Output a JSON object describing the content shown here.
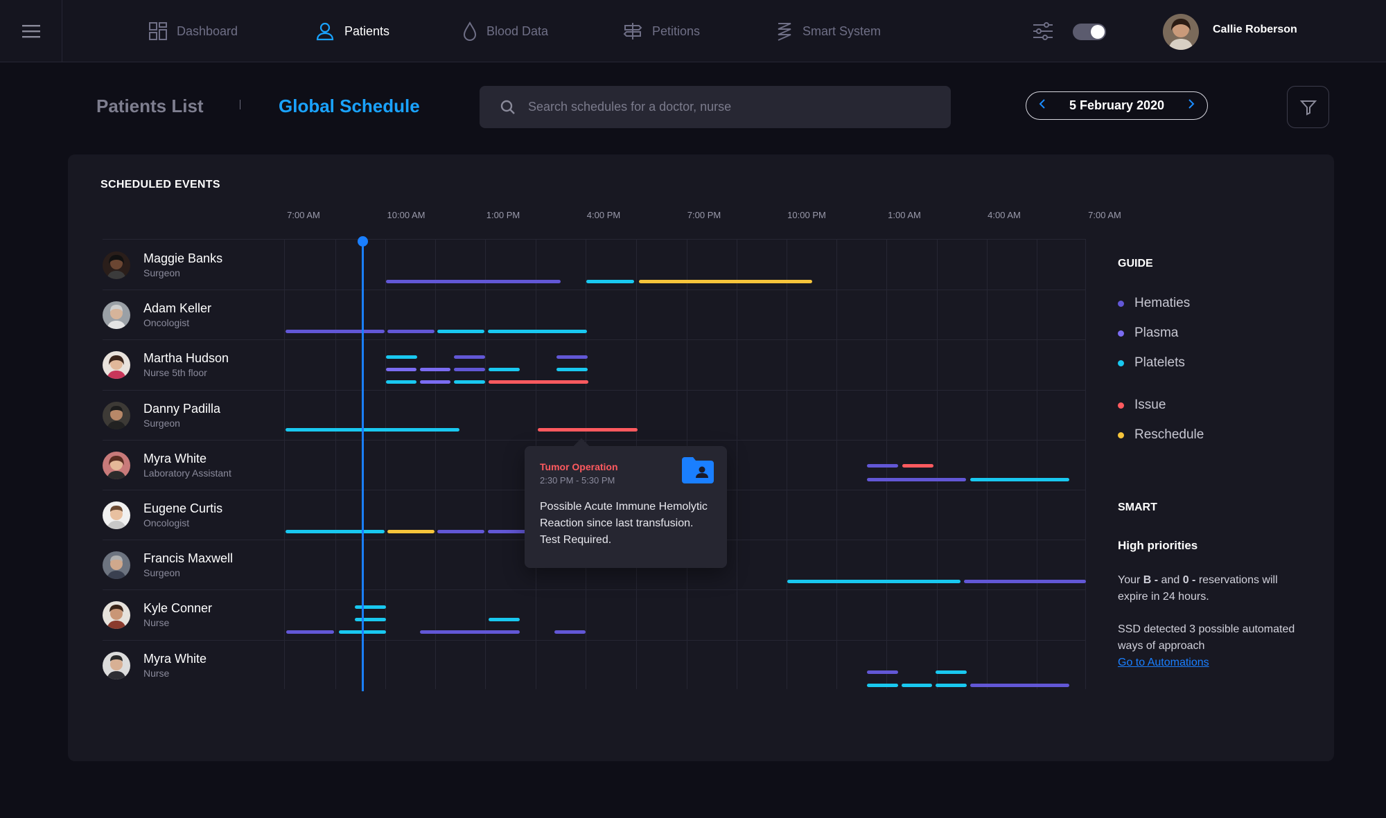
{
  "nav": {
    "items": [
      {
        "label": "Dashboard",
        "icon": "dashboard-icon"
      },
      {
        "label": "Patients",
        "icon": "user-icon"
      },
      {
        "label": "Blood Data",
        "icon": "drop-icon"
      },
      {
        "label": "Petitions",
        "icon": "signpost-icon"
      },
      {
        "label": "Smart System",
        "icon": "spiral-icon"
      }
    ],
    "active": "Patients",
    "toggle_on": true,
    "user_name": "Callie Roberson"
  },
  "header": {
    "tab_inactive": "Patients List",
    "tab_active": "Global Schedule",
    "search_placeholder": "Search schedules for a doctor, nurse",
    "date": "5 February 2020"
  },
  "schedule": {
    "title": "SCHEDULED EVENTS",
    "times": [
      "7:00 AM",
      "10:00 AM",
      "1:00 PM",
      "4:00 PM",
      "7:00 PM",
      "10:00 PM",
      "1:00 AM",
      "4:00 AM",
      "7:00 AM"
    ],
    "people": [
      {
        "name": "Maggie Banks",
        "role": "Surgeon"
      },
      {
        "name": "Adam Keller",
        "role": "Oncologist"
      },
      {
        "name": "Martha Hudson",
        "role": "Nurse 5th floor"
      },
      {
        "name": "Danny Padilla",
        "role": "Surgeon"
      },
      {
        "name": "Myra White",
        "role": "Laboratory Assistant"
      },
      {
        "name": "Eugene Curtis",
        "role": "Oncologist"
      },
      {
        "name": "Francis Maxwell",
        "role": "Surgeon"
      },
      {
        "name": "Kyle Conner",
        "role": "Nurse"
      },
      {
        "name": "Myra White",
        "role": "Nurse"
      }
    ]
  },
  "tooltip": {
    "title": "Tumor Operation",
    "time": "2:30 PM - 5:30 PM",
    "body": "Possible Acute Immune Hemolytic Reaction since last transfusion. Test Required."
  },
  "guide": {
    "title": "GUIDE",
    "items": [
      {
        "label": "Hematies",
        "color": "#6257d6"
      },
      {
        "label": "Plasma",
        "color": "#7b6cf2"
      },
      {
        "label": "Platelets",
        "color": "#19c8f0"
      },
      {
        "label": "Issue",
        "color": "#ff5a5f"
      },
      {
        "label": "Reschedule",
        "color": "#f6c43b"
      }
    ]
  },
  "smart": {
    "title": "SMART",
    "subtitle": "High priorities",
    "line1_pre": "Your ",
    "line1_b": "B -",
    "line1_mid": " and ",
    "line1_0": "0 -",
    "line1_post": " reservations will expire in 24 hours.",
    "line2": "SSD detected 3 possible automated ways of approach",
    "link": "Go to Automations"
  },
  "colors": {
    "accent": "#1aa3ff",
    "hematies": "#6257d6",
    "plasma": "#7b6cf2",
    "platelets": "#19c8f0",
    "issue": "#ff5a5f",
    "reschedule": "#f6c43b"
  }
}
